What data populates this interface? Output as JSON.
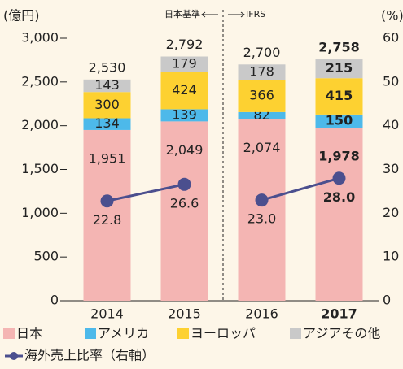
{
  "chart_data": {
    "type": "stacked_bar_line",
    "y_label": "(億円)",
    "y2_label": "(%)",
    "categories": [
      "2014",
      "2015",
      "2016",
      "2017"
    ],
    "highlight_category": "2017",
    "series": [
      {
        "name": "日本",
        "color": "#f4b5b3",
        "values": [
          1951,
          2049,
          2074,
          1978
        ],
        "value_labels": [
          "1,951",
          "2,049",
          "2,074",
          "1,978"
        ]
      },
      {
        "name": "アメリカ",
        "color": "#4db9ea",
        "values": [
          134,
          139,
          82,
          150
        ]
      },
      {
        "name": "ヨーロッパ",
        "color": "#fdd131",
        "values": [
          300,
          424,
          366,
          415
        ]
      },
      {
        "name": "アジアその他",
        "color": "#c9c9c9",
        "values": [
          143,
          179,
          178,
          215
        ]
      },
      {
        "name": "海外売上比率（右軸）",
        "color": "#4b4f8e",
        "axis": "y2",
        "type": "line",
        "values": [
          22.8,
          26.6,
          23.0,
          28.0
        ],
        "value_labels": [
          "22.8",
          "26.6",
          "23.0",
          "28.0"
        ]
      }
    ],
    "total_labels": [
      "2,530",
      "2,792",
      "2,700",
      "2,758"
    ],
    "divider": {
      "after": "2015",
      "left_label": "日本基準",
      "right_label": "IFRS"
    },
    "ylim": [
      0,
      3000
    ],
    "yticks": [
      0,
      500,
      {
        "value": 1000,
        "label": "1,000"
      },
      {
        "value": 1500,
        "label": "1,500"
      },
      {
        "value": 2000,
        "label": "2,000"
      },
      {
        "value": 2500,
        "label": "2,500"
      },
      {
        "value": 3000,
        "label": "3,000"
      }
    ],
    "y2lim": [
      0,
      60
    ],
    "y2ticks": [
      0,
      10,
      20,
      30,
      40,
      50,
      60
    ]
  }
}
